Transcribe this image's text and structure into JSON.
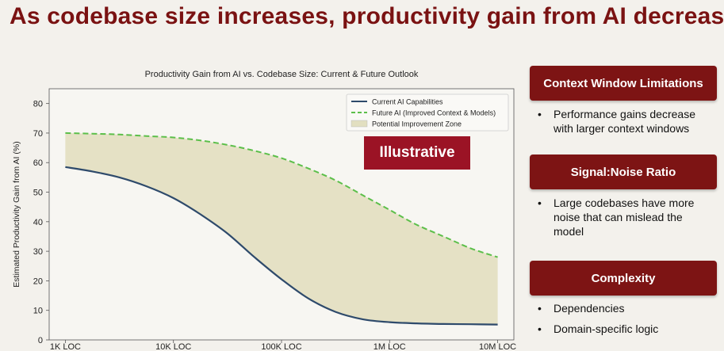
{
  "slide_title": "As codebase size increases, productivity gain from AI decreases",
  "badge_label": "Illustrative",
  "chart_data": {
    "type": "line",
    "title": "Productivity Gain from AI vs. Codebase Size: Current & Future Outlook",
    "xlabel": "",
    "ylabel": "Estimated Productivity Gain from AI (%)",
    "x_scale": "log10",
    "x_ticks": [
      {
        "value": 3,
        "label": "1K LOC"
      },
      {
        "value": 4,
        "label": "10K LOC"
      },
      {
        "value": 5,
        "label": "100K LOC"
      },
      {
        "value": 6,
        "label": "1M LOC"
      },
      {
        "value": 7,
        "label": "10M LOC"
      }
    ],
    "ylim": [
      0,
      85
    ],
    "y_ticks": [
      0,
      10,
      20,
      30,
      40,
      50,
      60,
      70,
      80
    ],
    "grid": false,
    "legend_position": "top-right",
    "series": [
      {
        "name": "Current AI Capabilities",
        "style": "solid",
        "color": "#2e4a6b",
        "x": [
          3,
          3.25,
          3.5,
          3.75,
          4,
          4.25,
          4.5,
          4.75,
          5,
          5.25,
          5.5,
          5.75,
          6,
          6.25,
          6.5,
          6.75,
          7
        ],
        "y": [
          58.5,
          57,
          55,
          52,
          48,
          42.5,
          36,
          28,
          20.5,
          14,
          9.5,
          7,
          6,
          5.6,
          5.4,
          5.3,
          5.2
        ]
      },
      {
        "name": "Future AI (Improved Context & Models)",
        "style": "dashed",
        "color": "#5cbf4a",
        "x": [
          3,
          3.25,
          3.5,
          3.75,
          4,
          4.25,
          4.5,
          4.75,
          5,
          5.25,
          5.5,
          5.75,
          6,
          6.25,
          6.5,
          6.75,
          7
        ],
        "y": [
          70,
          69.8,
          69.5,
          69,
          68.5,
          67.5,
          66,
          64,
          61.5,
          58,
          54,
          49,
          44,
          39,
          35,
          31,
          28
        ]
      }
    ],
    "fill_between": {
      "name": "Potential Improvement Zone",
      "color": "#e2dfc0"
    }
  },
  "panels": [
    {
      "title": "Context Window Limitations",
      "bullets": [
        "Performance gains decrease with larger context windows"
      ]
    },
    {
      "title": "Signal:Noise Ratio",
      "bullets": [
        "Large codebases have more noise that can mislead the model"
      ]
    },
    {
      "title": "Complexity",
      "bullets": [
        "Dependencies",
        "Domain-specific logic"
      ]
    }
  ]
}
